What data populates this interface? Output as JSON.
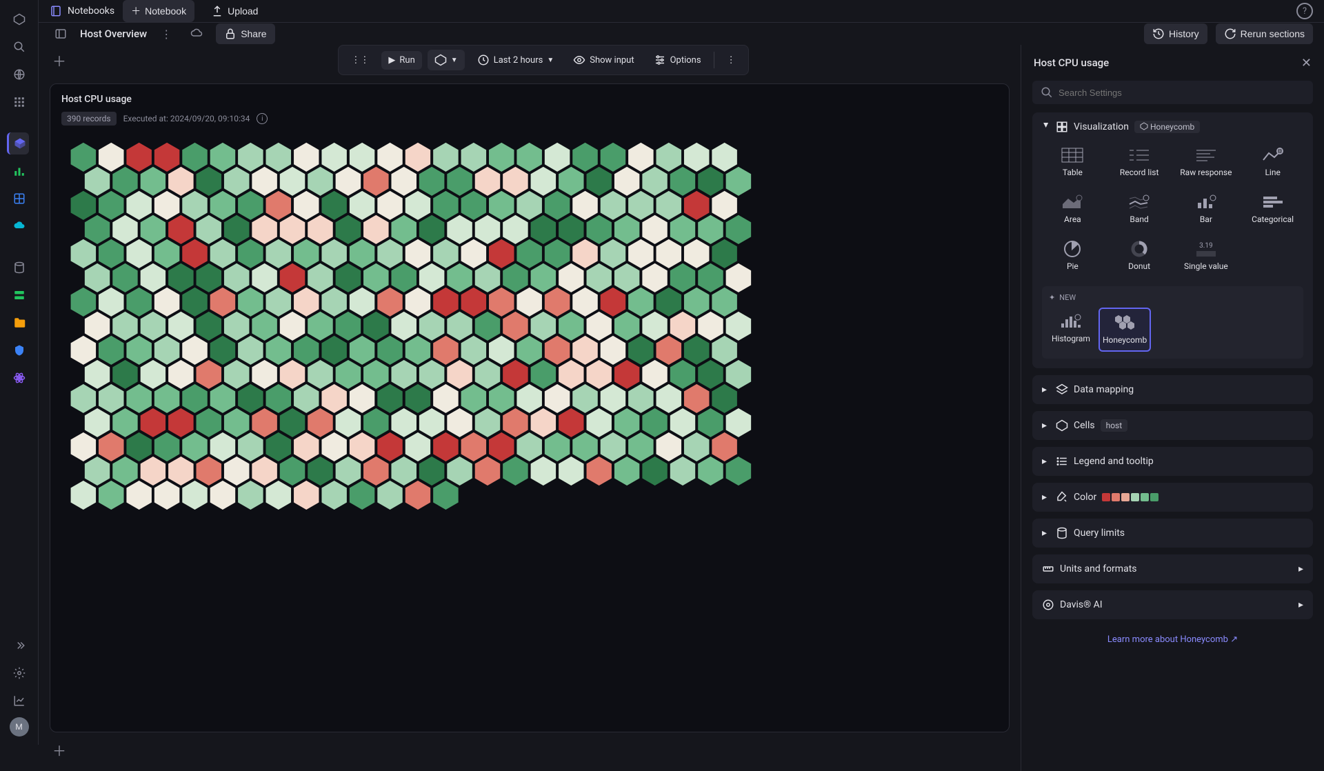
{
  "topbar": {
    "notebooks": "Notebooks",
    "notebook_btn": "Notebook",
    "upload_btn": "Upload"
  },
  "subbar": {
    "title": "Host Overview",
    "share": "Share",
    "history": "History",
    "rerun": "Rerun sections"
  },
  "toolbar": {
    "run": "Run",
    "timerange": "Last 2 hours",
    "show_input": "Show input",
    "options": "Options"
  },
  "cell": {
    "title": "Host CPU usage",
    "records": "390 records",
    "executed": "Executed at: 2024/09/20, 09:10:34"
  },
  "panel": {
    "title": "Host CPU usage",
    "search_placeholder": "Search Settings",
    "visualization": "Visualization",
    "viz_tag": "Honeycomb",
    "viz_types": {
      "table": "Table",
      "record_list": "Record list",
      "raw_response": "Raw response",
      "line": "Line",
      "area": "Area",
      "band": "Band",
      "bar": "Bar",
      "categorical": "Categorical",
      "pie": "Pie",
      "donut": "Donut",
      "single_value": "Single value",
      "histogram": "Histogram",
      "honeycomb": "Honeycomb"
    },
    "new_label": "NEW",
    "single_value_num": "3.19",
    "data_mapping": "Data mapping",
    "cells": "Cells",
    "cells_tag": "host",
    "legend": "Legend and tooltip",
    "color": "Color",
    "color_swatches": [
      "#c43838",
      "#e07a6c",
      "#e8a896",
      "#a6d4b4",
      "#73bd8e",
      "#4a9d6a"
    ],
    "query_limits": "Query limits",
    "units": "Units and formats",
    "davis": "Davis® AI",
    "learn_more": "Learn more about Honeycomb"
  },
  "honeycomb": {
    "colors": [
      "#c43838",
      "#e07a6c",
      "#f5d5c8",
      "#f0ebe0",
      "#d4e8d4",
      "#a6d4b4",
      "#73bd8e",
      "#4a9d6a",
      "#2d7a4a"
    ],
    "stroke": "#0d0e14",
    "hex_radius": 22,
    "cols": 24,
    "rows": 15,
    "background": "#0d0e14"
  },
  "avatar_letter": "M"
}
